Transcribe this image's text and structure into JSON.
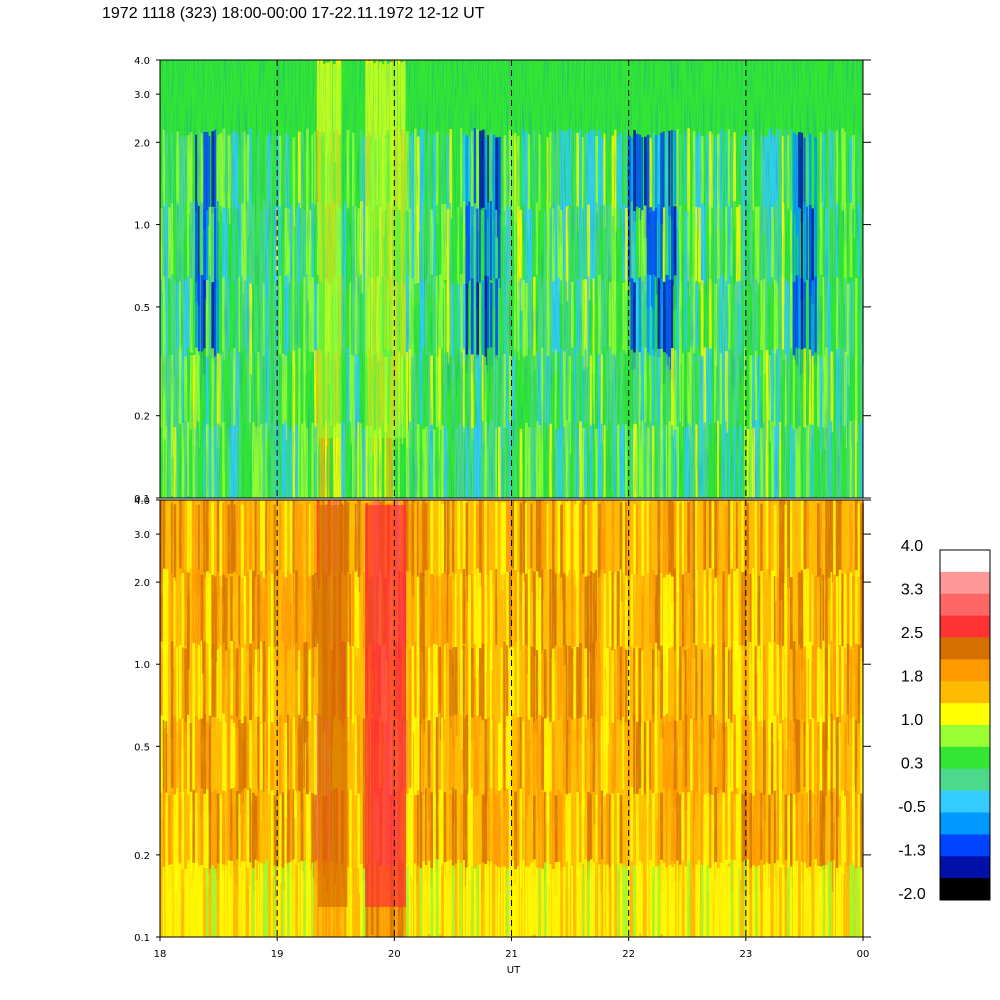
{
  "title": "1972 1118 (323) 18:00-00:00 17-22.11.1972  12-12 UT",
  "chart_data": [
    {
      "type": "heatmap",
      "panel": "upper",
      "y_scale": "log",
      "ylim": [
        0.1,
        4.0
      ],
      "y_ticks": [
        "4.0",
        "3.0",
        "2.0",
        "1.0",
        "0.5",
        "0.2",
        "0.1"
      ],
      "y_tick_values": [
        4.0,
        3.0,
        2.0,
        1.0,
        0.5,
        0.2,
        0.1
      ],
      "xlim": [
        18,
        24
      ],
      "dashed_gridlines_x": [
        19,
        20,
        21,
        22,
        23
      ],
      "dominant_level": 0.3,
      "enhanced_intervals": [
        {
          "x_start": 19.35,
          "x_end": 19.55,
          "level": 1.0
        },
        {
          "x_start": 19.75,
          "x_end": 20.1,
          "level": 1.0
        }
      ],
      "depleted_intervals": [
        {
          "x_start": 18.3,
          "x_end": 18.5,
          "level": -1.3
        },
        {
          "x_start": 20.6,
          "x_end": 20.9,
          "level": -1.3
        },
        {
          "x_start": 22.0,
          "x_end": 22.4,
          "level": -1.3
        },
        {
          "x_start": 23.4,
          "x_end": 23.6,
          "level": -1.3
        }
      ]
    },
    {
      "type": "heatmap",
      "panel": "lower",
      "y_scale": "log",
      "ylim": [
        0.1,
        4.0
      ],
      "y_ticks": [
        "4.0",
        "3.0",
        "2.0",
        "1.0",
        "0.5",
        "0.2",
        "0.1"
      ],
      "y_tick_values": [
        4.0,
        3.0,
        2.0,
        1.0,
        0.5,
        0.2,
        0.1
      ],
      "x_ticks": [
        "18",
        "19",
        "20",
        "21",
        "22",
        "23",
        "00"
      ],
      "x_tick_values": [
        18,
        19,
        20,
        21,
        22,
        23,
        24
      ],
      "xlabel": "UT",
      "xlim": [
        18,
        24
      ],
      "dashed_gridlines_x": [
        19,
        20,
        21,
        22,
        23
      ],
      "dominant_level": 1.8,
      "enhanced_intervals": [
        {
          "x_start": 19.35,
          "x_end": 19.6,
          "level": 2.5
        },
        {
          "x_start": 19.75,
          "x_end": 20.1,
          "level": 2.8
        }
      ]
    }
  ],
  "colorbar": {
    "labels": [
      "4.0",
      "3.3",
      "2.5",
      "1.8",
      "1.0",
      "0.3",
      "-0.5",
      "-1.3",
      "-2.0"
    ],
    "colors": [
      "#ffffff",
      "#ff9999",
      "#ff6666",
      "#ff3333",
      "#d46f00",
      "#ff9900",
      "#ffbb00",
      "#ffff00",
      "#99ff33",
      "#33e633",
      "#4dd98c",
      "#33ccff",
      "#0099ff",
      "#0044ff",
      "#0011aa",
      "#000000"
    ]
  }
}
